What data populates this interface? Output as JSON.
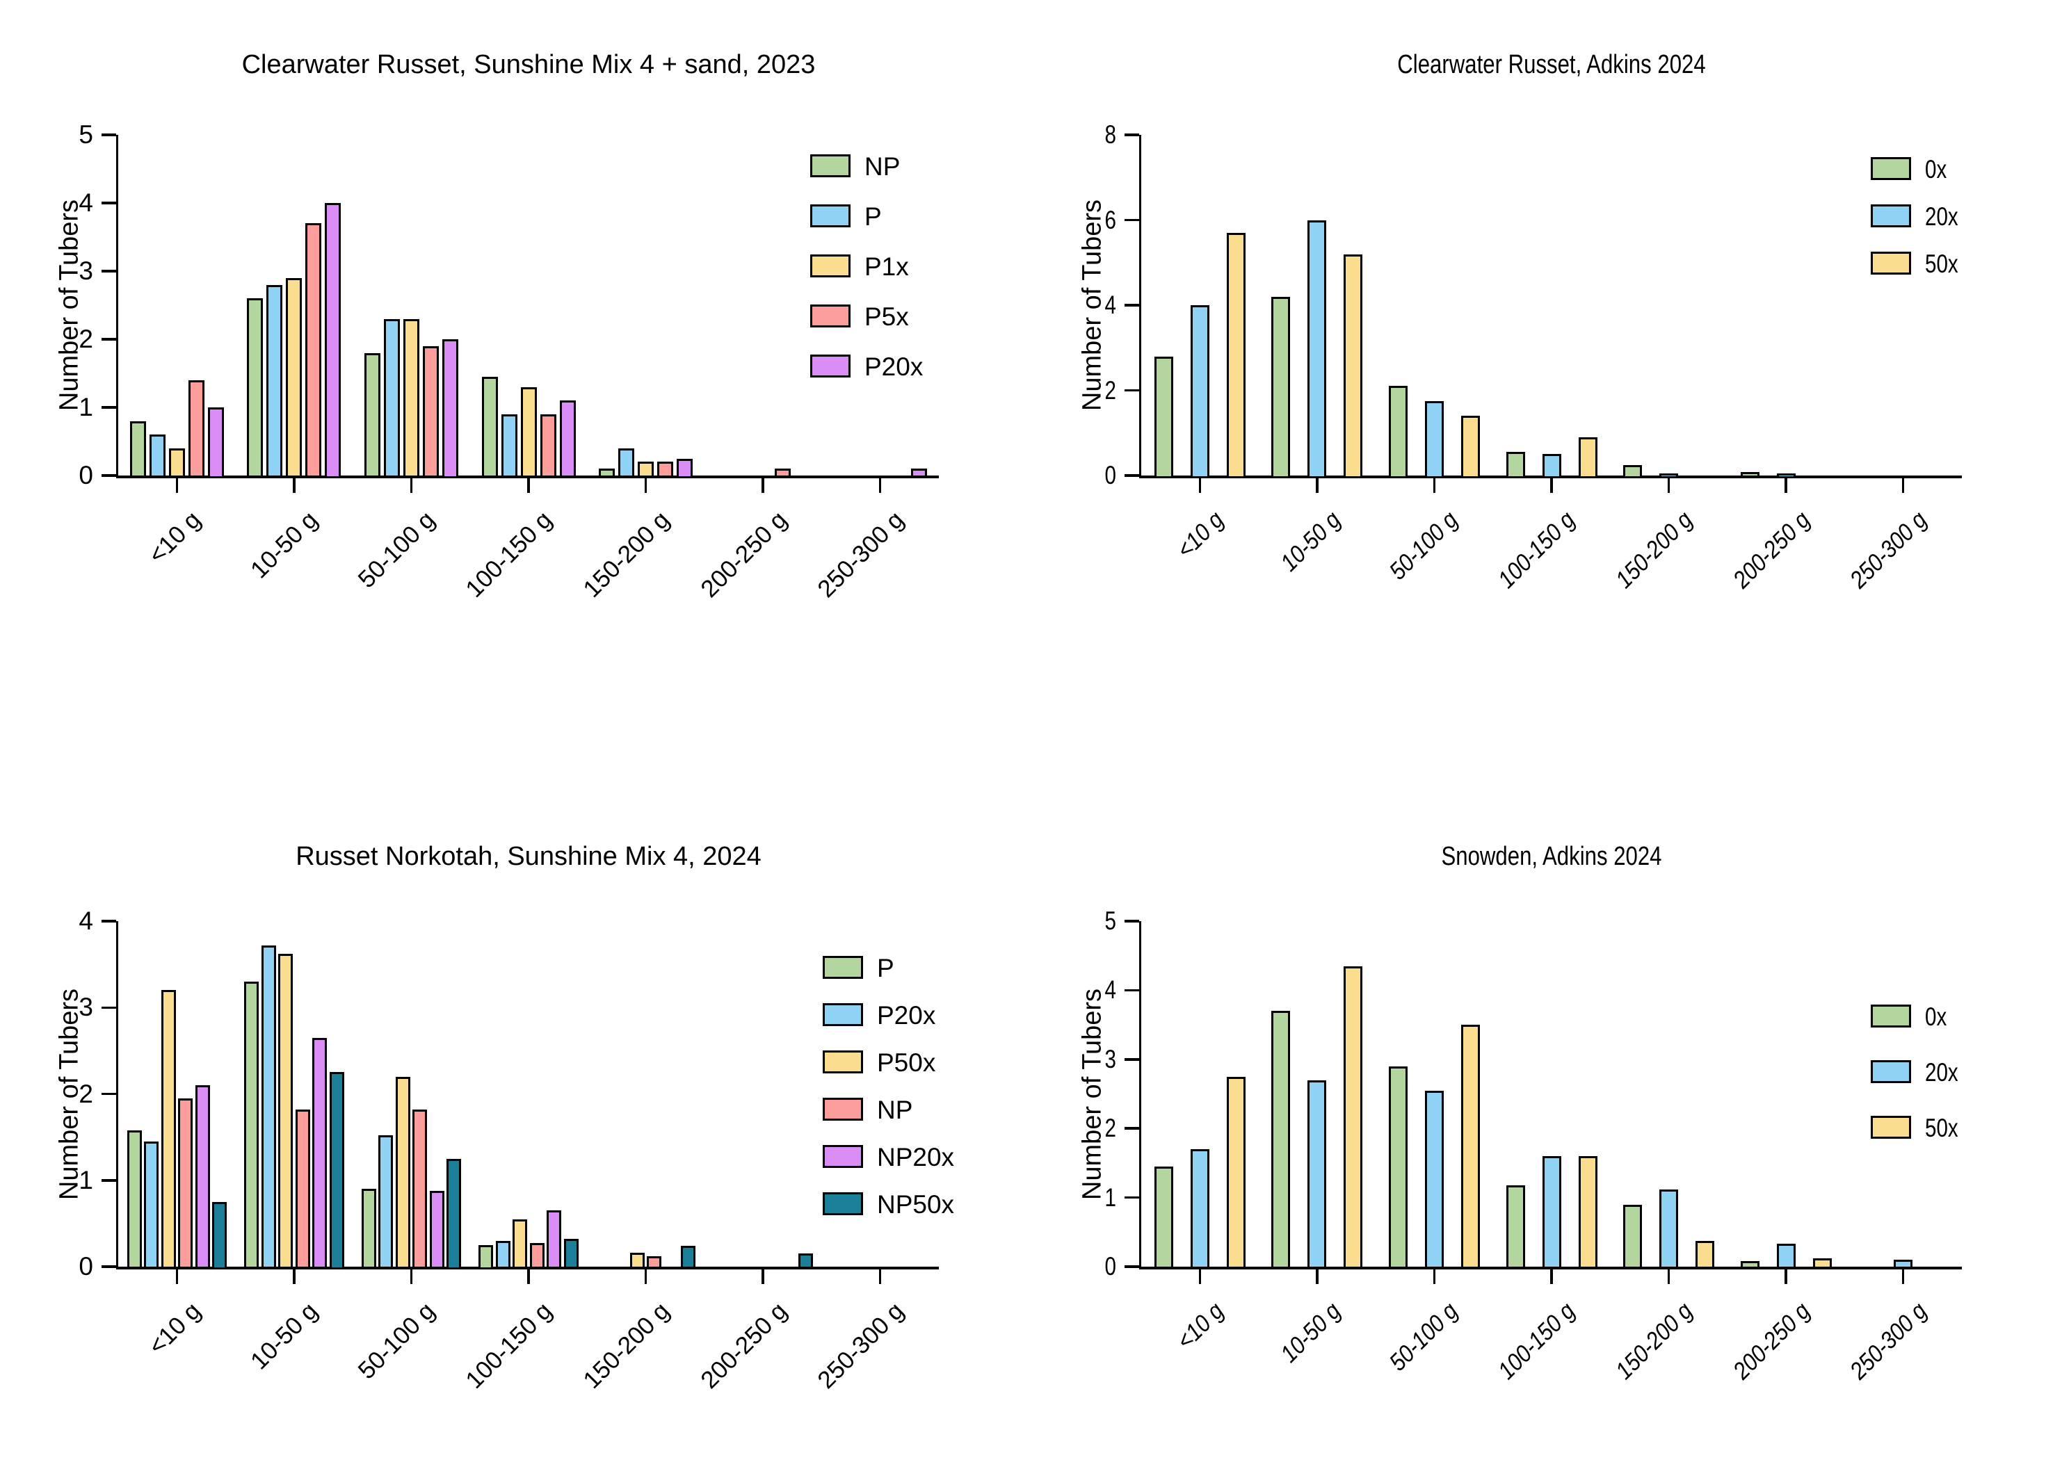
{
  "page": {
    "background": "#ffffff",
    "axis_color": "#000000"
  },
  "chart_data": [
    {
      "type": "bar",
      "title": "Clearwater Russet, Sunshine Mix 4 + sand, 2023",
      "ylabel": "Number of Tubers",
      "xlabel": "",
      "categories": [
        "<10 g",
        "10-50 g",
        "50-100 g",
        "100-150 g",
        "150-200 g",
        "200-250 g",
        "250-300 g"
      ],
      "ylim": [
        0,
        5
      ],
      "yticks": [
        0,
        1,
        2,
        3,
        4,
        5
      ],
      "grid": false,
      "legend_position": "upper-right",
      "style": {
        "condensed": false,
        "italic_xticks": false
      },
      "series": [
        {
          "name": "NP",
          "color": "#b3d69e",
          "values": [
            0.8,
            2.6,
            1.8,
            1.45,
            0.1,
            0,
            0
          ]
        },
        {
          "name": "P",
          "color": "#90d2f4",
          "values": [
            0.6,
            2.8,
            2.3,
            0.9,
            0.4,
            0,
            0
          ]
        },
        {
          "name": "P1x",
          "color": "#fadd8e",
          "values": [
            0.4,
            2.9,
            2.3,
            1.3,
            0.2,
            0,
            0
          ]
        },
        {
          "name": "P5x",
          "color": "#fb9d9b",
          "values": [
            1.4,
            3.7,
            1.9,
            0.9,
            0.2,
            0.1,
            0
          ]
        },
        {
          "name": "P20x",
          "color": "#d98df5",
          "values": [
            1.0,
            4.0,
            2.0,
            1.1,
            0.25,
            0,
            0.1
          ]
        }
      ]
    },
    {
      "type": "bar",
      "title": "Clearwater Russet, Adkins 2024",
      "ylabel": "Number of Tubers",
      "xlabel": "",
      "categories": [
        "<10 g",
        "10-50 g",
        "50-100 g",
        "100-150 g",
        "150-200 g",
        "200-250 g",
        "250-300 g"
      ],
      "ylim": [
        0,
        8
      ],
      "yticks": [
        0,
        2,
        4,
        6,
        8
      ],
      "grid": false,
      "legend_position": "upper-right",
      "style": {
        "condensed": true,
        "italic_xticks": true
      },
      "series": [
        {
          "name": "0x",
          "color": "#b3d69e",
          "values": [
            2.8,
            4.2,
            2.1,
            0.55,
            0.25,
            0.08,
            0
          ]
        },
        {
          "name": "20x",
          "color": "#90d2f4",
          "values": [
            4.0,
            6.0,
            1.75,
            0.5,
            0.05,
            0.05,
            0
          ]
        },
        {
          "name": "50x",
          "color": "#fadd8e",
          "values": [
            5.7,
            5.2,
            1.4,
            0.9,
            0,
            0,
            0
          ]
        }
      ]
    },
    {
      "type": "bar",
      "title": "Russet Norkotah, Sunshine Mix 4, 2024",
      "ylabel": "Number of Tubers",
      "xlabel": "",
      "categories": [
        "<10 g",
        "10-50 g",
        "50-100 g",
        "100-150 g",
        "150-200 g",
        "200-250 g",
        "250-300 g"
      ],
      "ylim": [
        0,
        4
      ],
      "yticks": [
        0,
        1,
        2,
        3,
        4
      ],
      "grid": false,
      "legend_position": "upper-right",
      "style": {
        "condensed": false,
        "italic_xticks": false
      },
      "series": [
        {
          "name": "P",
          "color": "#b3d69e",
          "values": [
            1.58,
            3.3,
            0.9,
            0.25,
            0,
            0,
            0
          ]
        },
        {
          "name": "P20x",
          "color": "#90d2f4",
          "values": [
            1.45,
            3.72,
            1.52,
            0.3,
            0,
            0,
            0
          ]
        },
        {
          "name": "P50x",
          "color": "#fadd8e",
          "values": [
            3.2,
            3.62,
            2.2,
            0.55,
            0.16,
            0,
            0
          ]
        },
        {
          "name": "NP",
          "color": "#fb9d9b",
          "values": [
            1.95,
            1.82,
            1.82,
            0.27,
            0.12,
            0,
            0
          ]
        },
        {
          "name": "NP20x",
          "color": "#d98df5",
          "values": [
            2.1,
            2.65,
            0.88,
            0.65,
            0,
            0,
            0
          ]
        },
        {
          "name": "NP50x",
          "color": "#1b7f99",
          "values": [
            0.75,
            2.25,
            1.25,
            0.32,
            0.24,
            0.15,
            0
          ]
        }
      ]
    },
    {
      "type": "bar",
      "title": "Snowden, Adkins 2024",
      "ylabel": "Number of Tubers",
      "xlabel": "",
      "categories": [
        "<10 g",
        "10-50 g",
        "50-100 g",
        "100-150 g",
        "150-200 g",
        "200-250 g",
        "250-300 g"
      ],
      "ylim": [
        0,
        5
      ],
      "yticks": [
        0,
        1,
        2,
        3,
        4,
        5
      ],
      "grid": false,
      "legend_position": "upper-right",
      "style": {
        "condensed": true,
        "italic_xticks": true
      },
      "series": [
        {
          "name": "0x",
          "color": "#b3d69e",
          "values": [
            1.45,
            3.7,
            2.9,
            1.18,
            0.9,
            0.08,
            0
          ]
        },
        {
          "name": "20x",
          "color": "#90d2f4",
          "values": [
            1.7,
            2.7,
            2.55,
            1.6,
            1.12,
            0.33,
            0.1
          ]
        },
        {
          "name": "50x",
          "color": "#fadd8e",
          "values": [
            2.75,
            4.35,
            3.5,
            1.6,
            0.37,
            0.12,
            0
          ]
        }
      ]
    }
  ]
}
